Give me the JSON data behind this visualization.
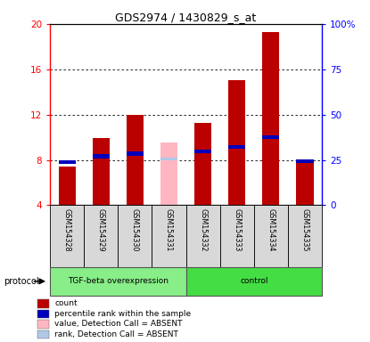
{
  "title": "GDS2974 / 1430829_s_at",
  "samples": [
    "GSM154328",
    "GSM154329",
    "GSM154330",
    "GSM154331",
    "GSM154332",
    "GSM154333",
    "GSM154334",
    "GSM154335"
  ],
  "count_values": [
    7.4,
    9.9,
    12.0,
    null,
    11.3,
    15.0,
    19.3,
    8.0
  ],
  "rank_values": [
    7.8,
    8.3,
    8.55,
    null,
    8.75,
    9.15,
    10.0,
    7.9
  ],
  "absent_count": [
    null,
    null,
    null,
    9.5,
    null,
    null,
    null,
    null
  ],
  "absent_rank": [
    null,
    null,
    null,
    8.05,
    null,
    null,
    null,
    null
  ],
  "ylim_left": [
    4,
    20
  ],
  "ylim_right": [
    0,
    100
  ],
  "yticks_left": [
    4,
    8,
    12,
    16,
    20
  ],
  "ytick_labels_left": [
    "4",
    "8",
    "12",
    "16",
    "20"
  ],
  "yticks_right": [
    0,
    25,
    50,
    75,
    100
  ],
  "ytick_labels_right": [
    "0",
    "25",
    "50",
    "75",
    "100%"
  ],
  "bar_width": 0.5,
  "count_color": "#bb0000",
  "rank_color": "#0000bb",
  "absent_count_color": "#ffb6c1",
  "absent_rank_color": "#b0c8e8",
  "tgf_color": "#88ee88",
  "ctrl_color": "#44dd44",
  "legend_items": [
    {
      "label": "count",
      "color": "#bb0000"
    },
    {
      "label": "percentile rank within the sample",
      "color": "#0000bb"
    },
    {
      "label": "value, Detection Call = ABSENT",
      "color": "#ffb6c1"
    },
    {
      "label": "rank, Detection Call = ABSENT",
      "color": "#b0c8e8"
    }
  ],
  "rank_bar_height": 0.35,
  "absent_rank_bar_height": 0.25
}
